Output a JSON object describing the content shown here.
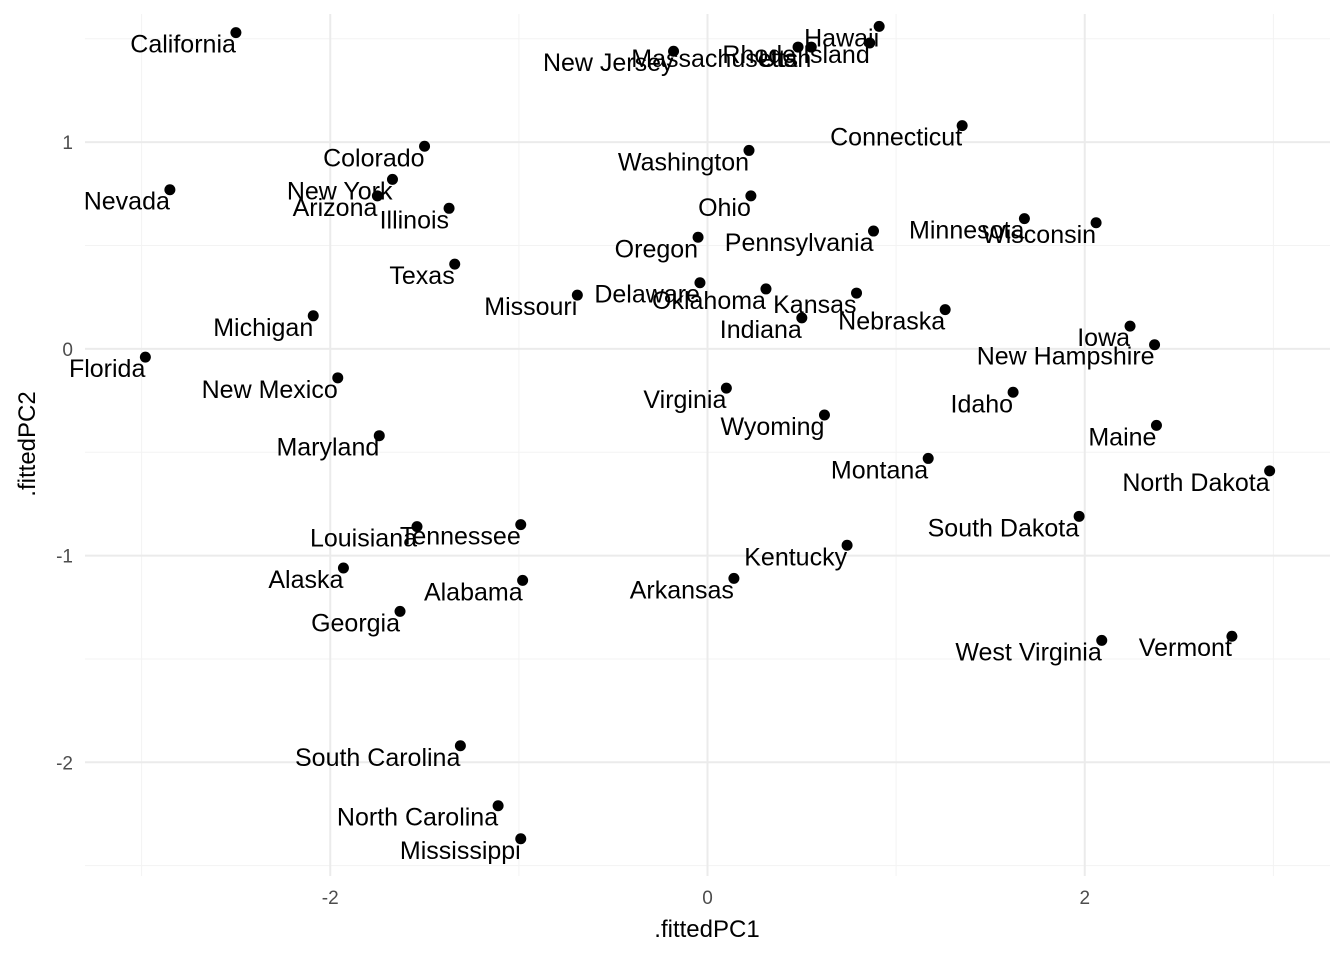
{
  "chart_data": {
    "type": "scatter",
    "xlabel": ".fittedPC1",
    "ylabel": ".fittedPC2",
    "xlim": [
      -3.3,
      3.3
    ],
    "ylim": [
      -2.55,
      1.62
    ],
    "x_ticks": [
      -2,
      0,
      2
    ],
    "x_tick_labels": [
      "-2",
      "0",
      "2"
    ],
    "y_ticks": [
      -2,
      -1,
      0,
      1
    ],
    "y_tick_labels": [
      "-2",
      "-1",
      "0",
      "1"
    ],
    "grid": true,
    "points": [
      {
        "label": "California",
        "x": -2.5,
        "y": 1.53
      },
      {
        "label": "Nevada",
        "x": -2.85,
        "y": 0.77
      },
      {
        "label": "Florida",
        "x": -2.98,
        "y": -0.04
      },
      {
        "label": "Colorado",
        "x": -1.5,
        "y": 0.98
      },
      {
        "label": "New York",
        "x": -1.67,
        "y": 0.82
      },
      {
        "label": "Arizona",
        "x": -1.75,
        "y": 0.74
      },
      {
        "label": "Illinois",
        "x": -1.37,
        "y": 0.68
      },
      {
        "label": "Texas",
        "x": -1.34,
        "y": 0.41
      },
      {
        "label": "Michigan",
        "x": -2.09,
        "y": 0.16
      },
      {
        "label": "New Mexico",
        "x": -1.96,
        "y": -0.14
      },
      {
        "label": "Maryland",
        "x": -1.74,
        "y": -0.42
      },
      {
        "label": "Louisiana",
        "x": -1.54,
        "y": -0.86
      },
      {
        "label": "Tennessee",
        "x": -0.99,
        "y": -0.85
      },
      {
        "label": "Alaska",
        "x": -1.93,
        "y": -1.06
      },
      {
        "label": "Alabama",
        "x": -0.98,
        "y": -1.12
      },
      {
        "label": "Georgia",
        "x": -1.63,
        "y": -1.27
      },
      {
        "label": "South Carolina",
        "x": -1.31,
        "y": -1.92
      },
      {
        "label": "North Carolina",
        "x": -1.11,
        "y": -2.21
      },
      {
        "label": "Mississippi",
        "x": -0.99,
        "y": -2.37
      },
      {
        "label": "New Jersey",
        "x": -0.18,
        "y": 1.44
      },
      {
        "label": "Massachusetts",
        "x": 0.48,
        "y": 1.46
      },
      {
        "label": "Rhode Island",
        "x": 0.86,
        "y": 1.48
      },
      {
        "label": "Utah",
        "x": 0.55,
        "y": 1.46
      },
      {
        "label": "Hawaii",
        "x": 0.91,
        "y": 1.56
      },
      {
        "label": "Connecticut",
        "x": 1.35,
        "y": 1.08
      },
      {
        "label": "Washington",
        "x": 0.22,
        "y": 0.96
      },
      {
        "label": "Ohio",
        "x": 0.23,
        "y": 0.74
      },
      {
        "label": "Oregon",
        "x": -0.05,
        "y": 0.54
      },
      {
        "label": "Pennsylvania",
        "x": 0.88,
        "y": 0.57
      },
      {
        "label": "Minnesota",
        "x": 1.68,
        "y": 0.63
      },
      {
        "label": "Wisconsin",
        "x": 2.06,
        "y": 0.61
      },
      {
        "label": "Delaware",
        "x": -0.04,
        "y": 0.32
      },
      {
        "label": "Missouri",
        "x": -0.69,
        "y": 0.26
      },
      {
        "label": "Oklahoma",
        "x": 0.31,
        "y": 0.29
      },
      {
        "label": "Kansas",
        "x": 0.79,
        "y": 0.27
      },
      {
        "label": "Indiana",
        "x": 0.5,
        "y": 0.15
      },
      {
        "label": "Nebraska",
        "x": 1.26,
        "y": 0.19
      },
      {
        "label": "Iowa",
        "x": 2.24,
        "y": 0.11
      },
      {
        "label": "New Hampshire",
        "x": 2.37,
        "y": 0.02
      },
      {
        "label": "Virginia",
        "x": 0.1,
        "y": -0.19
      },
      {
        "label": "Idaho",
        "x": 1.62,
        "y": -0.21
      },
      {
        "label": "Wyoming",
        "x": 0.62,
        "y": -0.32
      },
      {
        "label": "Maine",
        "x": 2.38,
        "y": -0.37
      },
      {
        "label": "Montana",
        "x": 1.17,
        "y": -0.53
      },
      {
        "label": "North Dakota",
        "x": 2.98,
        "y": -0.59
      },
      {
        "label": "South Dakota",
        "x": 1.97,
        "y": -0.81
      },
      {
        "label": "Kentucky",
        "x": 0.74,
        "y": -0.95
      },
      {
        "label": "Arkansas",
        "x": 0.14,
        "y": -1.11
      },
      {
        "label": "West Virginia",
        "x": 2.09,
        "y": -1.41
      },
      {
        "label": "Vermont",
        "x": 2.78,
        "y": -1.39
      }
    ]
  }
}
